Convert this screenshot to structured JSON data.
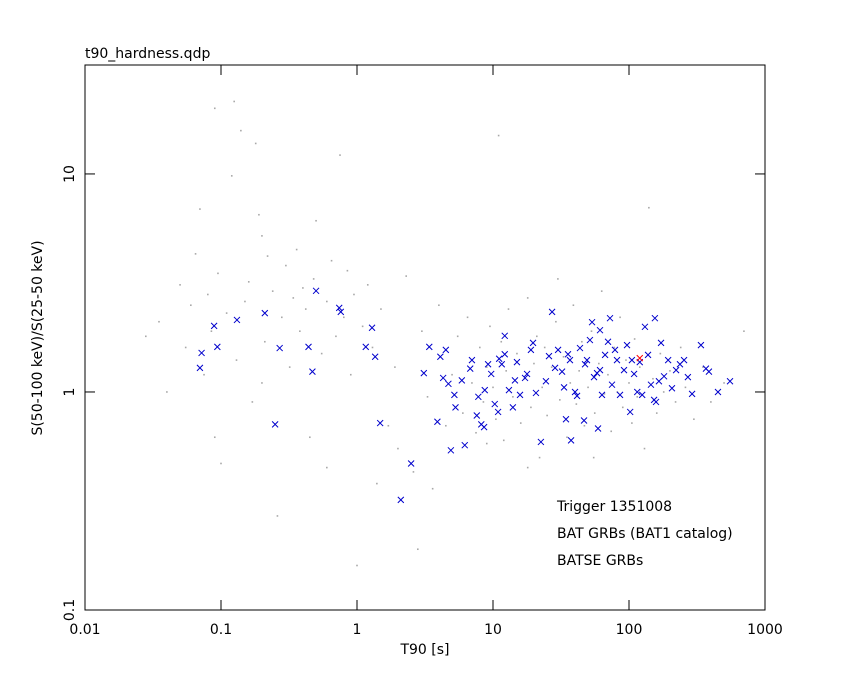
{
  "chart_data": {
    "type": "scatter",
    "title": "t90_hardness.qdp",
    "xlabel": "T90 [s]",
    "ylabel": "S(50-100 keV)/S(25-50 keV)",
    "xscale": "log",
    "yscale": "log",
    "xlim": [
      0.01,
      1000
    ],
    "ylim": [
      0.1,
      31.6
    ],
    "xticks": [
      0.01,
      0.1,
      1,
      10,
      100,
      1000
    ],
    "yticks": [
      0.1,
      1,
      10
    ],
    "grid": false,
    "legend": "lower right",
    "series": [
      {
        "name": "Trigger 1351008",
        "color": "#ff0000",
        "marker": "x",
        "x": [
          120
        ],
        "values": [
          1.43
        ]
      },
      {
        "name": "BAT GRBs (BAT1 catalog)",
        "color": "#0000cc",
        "marker": "x",
        "x": [
          0.07,
          0.072,
          0.089,
          0.094,
          0.131,
          0.21,
          0.27,
          0.25,
          0.44,
          0.47,
          0.5,
          0.74,
          0.76,
          1.16,
          1.29,
          1.36,
          1.48,
          2.1,
          2.5,
          3.1,
          3.4,
          3.9,
          4.1,
          4.5,
          4.3,
          4.7,
          4.9,
          5.3,
          5.2,
          5.9,
          6.2,
          6.8,
          7.0,
          7.6,
          7.8,
          8.2,
          8.6,
          8.7,
          9.2,
          9.7,
          10.3,
          10.9,
          11.1,
          11.6,
          12.2,
          13.1,
          14.0,
          12.2,
          15.0,
          15.8,
          17.2,
          17.8,
          19.0,
          19.7,
          20.7,
          22.5,
          24.5,
          25.8,
          27.2,
          28.6,
          30.1,
          32.2,
          33.3,
          34.4,
          35.6,
          37.5,
          40.1,
          41.5,
          43.6,
          46.7,
          49.1,
          51.6,
          53.5,
          55.3,
          58.2,
          59.2,
          63.3,
          66.7,
          70.1,
          72.5,
          75.0,
          78.9,
          81.6,
          85.9,
          91.9,
          96.7,
          102,
          105,
          109,
          115,
          120,
          125,
          131,
          138,
          145,
          153,
          158,
          166,
          172,
          181,
          194,
          207,
          222,
          237,
          254,
          271,
          291,
          338,
          368,
          387,
          451,
          553,
          155,
          36.8,
          47.5,
          61.2,
          14.5,
          61.2
        ],
        "values": [
          1.29,
          1.51,
          2.01,
          1.61,
          2.14,
          2.3,
          1.59,
          0.71,
          1.61,
          1.24,
          2.91,
          2.43,
          2.33,
          1.61,
          1.97,
          1.45,
          0.72,
          0.32,
          0.47,
          1.22,
          1.61,
          0.73,
          1.45,
          1.56,
          1.16,
          1.09,
          0.54,
          0.85,
          0.97,
          1.13,
          0.57,
          1.28,
          1.4,
          0.78,
          0.95,
          0.71,
          0.69,
          1.02,
          1.34,
          1.21,
          0.88,
          0.81,
          1.42,
          1.34,
          1.49,
          1.02,
          0.85,
          1.81,
          1.37,
          0.97,
          1.16,
          1.21,
          1.56,
          1.68,
          0.99,
          0.59,
          1.12,
          1.46,
          2.33,
          1.29,
          1.56,
          1.24,
          1.05,
          0.75,
          1.49,
          0.6,
          1.0,
          0.96,
          1.59,
          0.74,
          1.4,
          1.73,
          2.09,
          1.17,
          1.22,
          0.68,
          0.97,
          1.48,
          1.7,
          2.18,
          1.08,
          1.56,
          1.4,
          0.97,
          1.26,
          1.64,
          0.81,
          1.4,
          1.21,
          1.0,
          1.37,
          0.97,
          1.99,
          1.48,
          1.08,
          0.92,
          0.9,
          1.12,
          1.68,
          1.18,
          1.4,
          1.04,
          1.26,
          1.34,
          1.4,
          1.17,
          0.98,
          1.64,
          1.28,
          1.24,
          1.0,
          1.12,
          2.18,
          1.4,
          1.34,
          1.92,
          1.13,
          1.26
        ]
      },
      {
        "name": "BATSE GRBs",
        "color": "#a8a8a8",
        "marker": "dot",
        "x": [
          0.028,
          0.035,
          0.04,
          0.05,
          0.055,
          0.06,
          0.065,
          0.07,
          0.075,
          0.08,
          0.085,
          0.09,
          0.095,
          0.1,
          0.11,
          0.12,
          0.125,
          0.13,
          0.14,
          0.15,
          0.16,
          0.17,
          0.18,
          0.19,
          0.2,
          0.21,
          0.22,
          0.24,
          0.26,
          0.28,
          0.3,
          0.32,
          0.34,
          0.36,
          0.38,
          0.4,
          0.42,
          0.45,
          0.48,
          0.5,
          0.55,
          0.6,
          0.65,
          0.7,
          0.75,
          0.8,
          0.85,
          0.9,
          0.95,
          1.0,
          1.1,
          1.2,
          1.3,
          1.4,
          1.5,
          1.7,
          1.9,
          2.0,
          2.3,
          2.6,
          2.8,
          3.0,
          3.3,
          3.6,
          4.0,
          4.5,
          5,
          5.5,
          6,
          6.5,
          7,
          7.5,
          8,
          8.5,
          9,
          9.5,
          10,
          10.5,
          11,
          11.5,
          12,
          12.5,
          13,
          14,
          15,
          16,
          17,
          18,
          19,
          20,
          21,
          22,
          23,
          24,
          25,
          27,
          29,
          31,
          33,
          35,
          37,
          39,
          41,
          43,
          45,
          47,
          50,
          53,
          56,
          60,
          63,
          66,
          70,
          74,
          78,
          82,
          86,
          90,
          95,
          100,
          105,
          110,
          115,
          120,
          130,
          140,
          150,
          160,
          170,
          180,
          200,
          220,
          240,
          260,
          300,
          350,
          400,
          500,
          700,
          0.6,
          0.09,
          0.2,
          18,
          30,
          55,
          9
        ],
        "values": [
          1.8,
          2.1,
          1.0,
          3.1,
          1.6,
          2.5,
          4.3,
          6.9,
          1.2,
          2.8,
          1.9,
          20,
          3.5,
          0.47,
          2.3,
          9.8,
          21.5,
          1.4,
          15.8,
          2.6,
          3.2,
          0.9,
          13.8,
          6.5,
          5.2,
          1.7,
          4.2,
          2.9,
          0.27,
          2.2,
          3.8,
          1.3,
          2.7,
          4.5,
          1.9,
          3.0,
          2.4,
          0.62,
          3.3,
          6.1,
          1.5,
          2.6,
          4.0,
          1.8,
          12.2,
          2.2,
          3.6,
          1.2,
          2.8,
          0.16,
          2.0,
          3.1,
          1.6,
          0.38,
          2.4,
          0.7,
          1.3,
          0.55,
          3.4,
          0.43,
          0.19,
          1.9,
          0.95,
          0.36,
          2.5,
          0.7,
          1.2,
          1.8,
          0.8,
          2.2,
          1.1,
          0.65,
          1.6,
          0.9,
          1.3,
          2.0,
          1.05,
          0.75,
          15,
          1.7,
          0.6,
          1.25,
          2.4,
          0.95,
          1.5,
          0.72,
          1.15,
          2.7,
          0.85,
          1.35,
          1.8,
          0.5,
          1.05,
          1.6,
          0.78,
          1.3,
          2.1,
          0.92,
          1.45,
          0.62,
          1.1,
          2.5,
          0.88,
          1.25,
          1.7,
          0.7,
          1.05,
          1.9,
          0.8,
          1.35,
          2.9,
          0.98,
          1.2,
          0.66,
          1.6,
          1.0,
          2.2,
          0.85,
          1.4,
          1.1,
          0.72,
          1.75,
          0.95,
          1.3,
          0.55,
          7.0,
          1.15,
          0.8,
          1.5,
          1.0,
          1.25,
          0.9,
          1.6,
          1.05,
          0.75,
          1.3,
          0.9,
          1.1,
          1.9,
          0.45,
          0.62,
          1.1,
          0.45,
          3.3,
          0.5,
          0.58
        ]
      }
    ]
  }
}
